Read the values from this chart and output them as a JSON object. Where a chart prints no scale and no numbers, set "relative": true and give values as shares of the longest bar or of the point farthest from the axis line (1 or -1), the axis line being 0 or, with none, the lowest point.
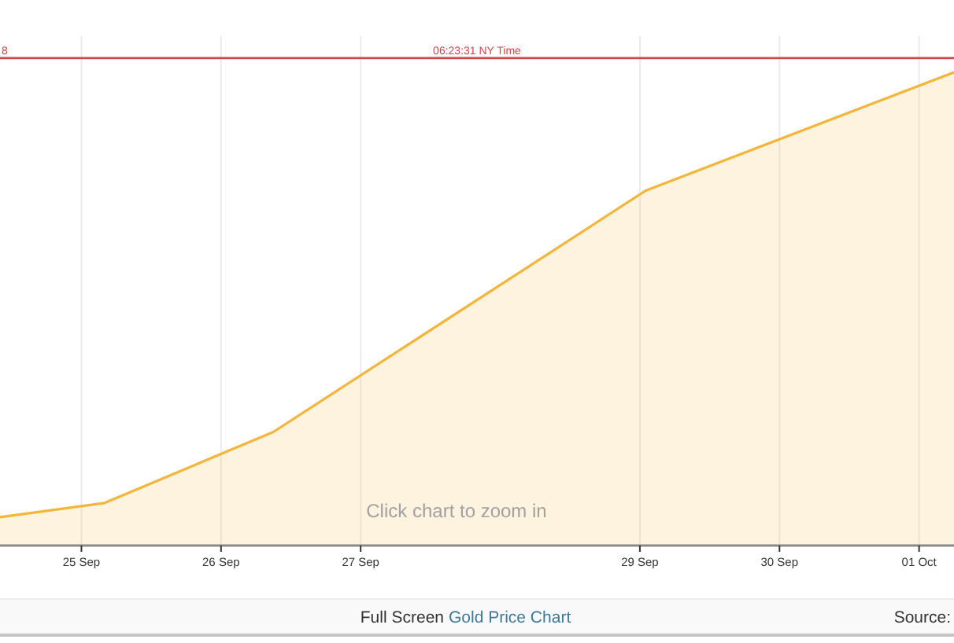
{
  "chart_data": {
    "type": "area",
    "relative": true,
    "x": [
      "--09-24T10:00",
      "--09-25T04:00",
      "--09-26T09:00",
      "--09-29T01:00",
      "--10-01T06:00"
    ],
    "values": [
      0.06,
      0.09,
      0.24,
      0.75,
      1
    ],
    "color": "#f3b53c",
    "xlim": [
      "--09-24T10:00",
      "--10-01T06:00"
    ],
    "xticks": [
      {
        "value": "--09-25",
        "label": "25 Sep"
      },
      {
        "value": "--09-26",
        "label": "26 Sep"
      },
      {
        "value": "--09-27",
        "label": "27 Sep"
      },
      {
        "value": "--09-29",
        "label": "29 Sep"
      },
      {
        "value": "--09-30",
        "label": "30 Sep"
      },
      {
        "value": "--10-01",
        "label": "01 Oct"
      }
    ],
    "grid": "x",
    "ref_lines": [
      {
        "axis": "y",
        "value": 1.03,
        "color": "#d0464c"
      }
    ],
    "annotations": [
      "8",
      "06:23:31 NY Time",
      "Click chart to zoom in",
      "Full Screen",
      "Gold Price Chart",
      "Source:"
    ]
  }
}
